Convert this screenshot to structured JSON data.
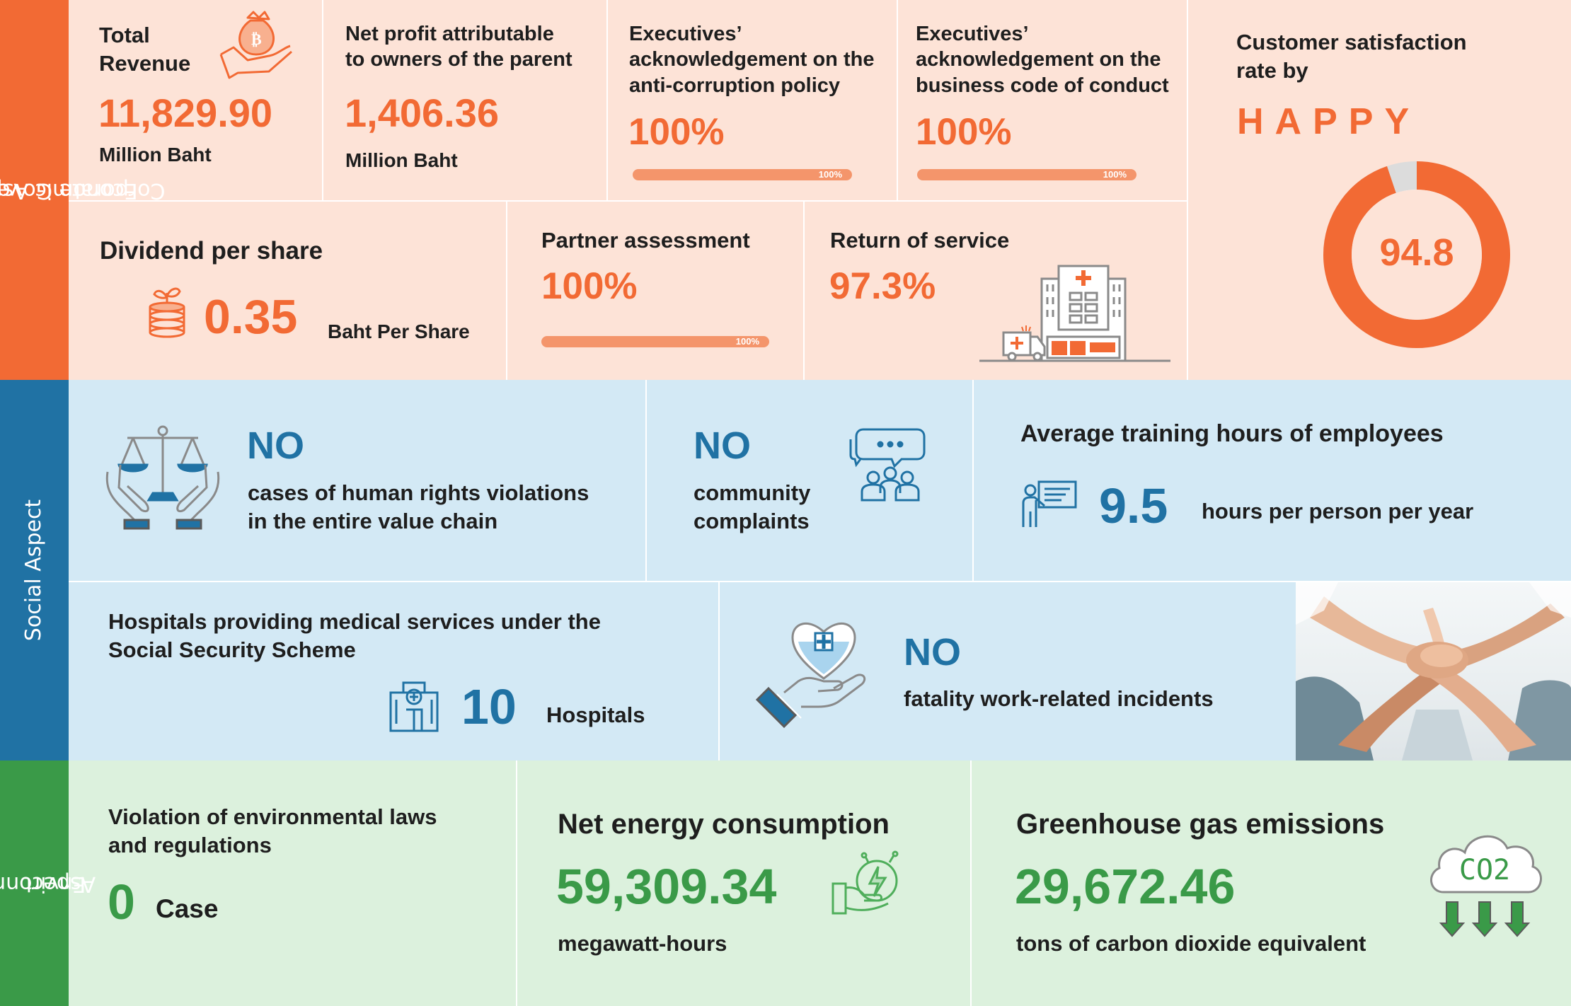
{
  "governance": {
    "side_label_1": "Corporate Governance and",
    "side_label_2": "Economic Aspect",
    "revenue": {
      "label_1": "Total",
      "label_2": "Revenue",
      "value": "11,829.90",
      "unit": "Million Baht"
    },
    "net_profit": {
      "label_1": "Net profit attributable",
      "label_2": "to owners of the parent",
      "value": "1,406.36",
      "unit": "Million Baht"
    },
    "anti_corruption": {
      "label_1": "Executives’",
      "label_2": "acknowledgement on the",
      "label_3": "anti-corruption policy",
      "value": "100%",
      "bar_label": "100%",
      "progress": 1.0
    },
    "code_of_conduct": {
      "label_1": "Executives’",
      "label_2": "acknowledgement on the",
      "label_3": "business code of conduct",
      "value": "100%",
      "bar_label": "100%",
      "progress": 1.0
    },
    "dividend": {
      "label": "Dividend per share",
      "value": "0.35",
      "unit": "Baht Per Share"
    },
    "partner": {
      "label": "Partner assessment",
      "value": "100%",
      "bar_label": "100%",
      "progress": 1.0
    },
    "return_of_service": {
      "label": "Return of service",
      "value": "97.3%"
    },
    "satisfaction": {
      "label_1": "Customer satisfaction",
      "label_2": "rate by",
      "brand": "HAPPY",
      "value": "94.8",
      "percent": 94.8
    }
  },
  "social": {
    "side_label": "Social Aspect",
    "human_rights": {
      "headline": "NO",
      "line_1": "cases of human rights violations",
      "line_2": "in the entire value chain"
    },
    "community": {
      "headline": "NO",
      "line_1": "community",
      "line_2": "complaints"
    },
    "training": {
      "label": "Average training hours of employees",
      "value": "9.5",
      "unit": "hours per person per year"
    },
    "hospitals": {
      "line_1": "Hospitals providing medical services under the",
      "line_2": "Social Security Scheme",
      "value": "10",
      "unit": "Hospitals"
    },
    "fatality": {
      "headline": "NO",
      "line_1": "fatality work-related incidents"
    }
  },
  "environment": {
    "side_label_1": "Environmental",
    "side_label_2": "Aspect",
    "violation": {
      "line_1": "Violation of environmental laws",
      "line_2": "and regulations",
      "value": "0",
      "unit": "Case"
    },
    "energy": {
      "label": "Net energy consumption",
      "value": "59,309.34",
      "unit": "megawatt-hours"
    },
    "ghg": {
      "label": "Greenhouse gas emissions",
      "value": "29,672.46",
      "unit": "tons of carbon dioxide equivalent",
      "icon_text": "CO2"
    }
  },
  "colors": {
    "orange": "#f26a34",
    "blue": "#2072a4",
    "green": "#3a9a48",
    "peach": "#fde3d7",
    "sky": "#d3e9f5",
    "mint": "#dcf1dd"
  },
  "icons": [
    "money-bag-hand-icon",
    "coin-stack-plant-icon",
    "hospital-ambulance-icon",
    "scales-hands-icon",
    "community-chat-icon",
    "trainer-board-icon",
    "hospital-building-icon",
    "heart-hand-icon",
    "team-hands-photo",
    "energy-hand-icon",
    "co2-cloud-icon"
  ]
}
